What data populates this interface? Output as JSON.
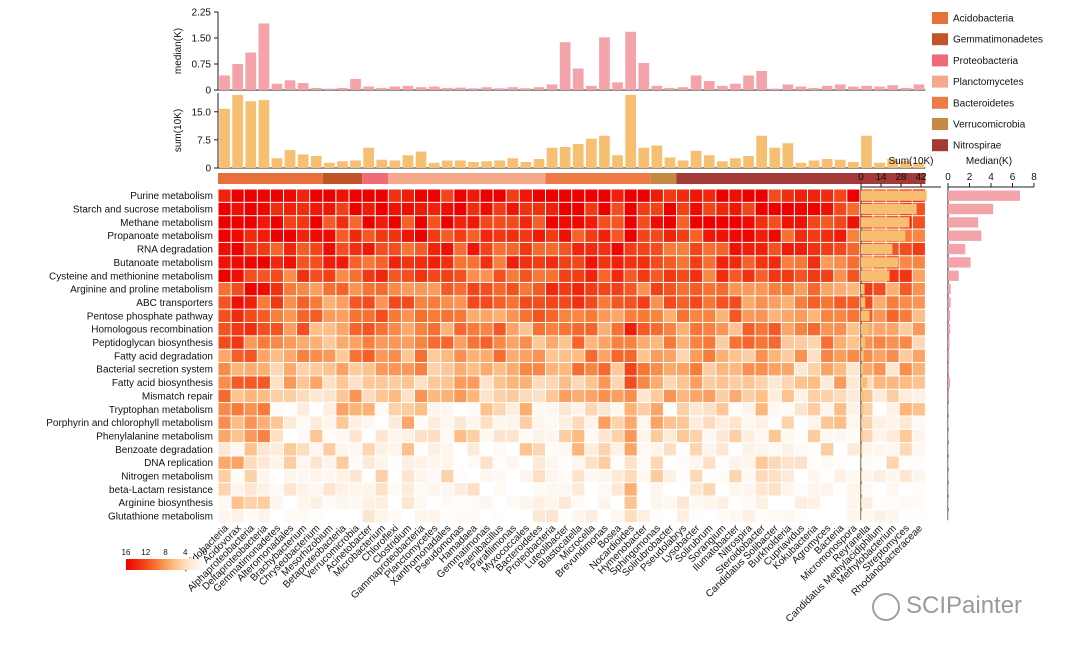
{
  "chart_data": {
    "type": "heatmap",
    "rows": [
      "Purine metabolism",
      "Starch and sucrose metabolism",
      "Methane metabolism",
      "Propanoate metabolism",
      "RNA degradation",
      "Butanoate metabolism",
      "Cysteine and methionine metabolism",
      "Arginine and proline metabolism",
      "ABC transporters",
      "Pentose phosphate pathway",
      "Homologous recombination",
      "Peptidoglycan biosynthesis",
      "Fatty acid degradation",
      "Bacterial secretion system",
      "Fatty acid biosynthesis",
      "Mismatch repair",
      "Tryptophan metabolism",
      "Porphyrin and chlorophyll metabolism",
      "Phenylalanine metabolism",
      "Benzoate degradation",
      "DNA replication",
      "Nitrogen metabolism",
      "beta-Lactam resistance",
      "Arginine biosynthesis",
      "Glutathione metabolism"
    ],
    "columns": [
      "Acidobacteria",
      "Acidovorax",
      "Alphaproteobacteria",
      "Deltaproteobacteria",
      "Gemmatimonadetes",
      "Alteromonadales",
      "Brachybacterium",
      "Chryseobacterium",
      "Mesorhizobium",
      "Betaproteobacteria",
      "Verrucomicrobia",
      "Acinetobacter",
      "Microbacterium",
      "Chloroflexi",
      "Clostridium",
      "Gammaproteobacteria",
      "Planctomycetes",
      "Xanthomonadales",
      "Pseudomonas",
      "Hamadaea",
      "Gemmatimonas",
      "Paenibacillus",
      "Parafilimonas",
      "Myxococcales",
      "Bacteroidetes",
      "Proteobacteria",
      "Luteolibacter",
      "Blastocatella",
      "Microcella",
      "Brevundimonas",
      "Bosea",
      "Nocardioides",
      "Hymenobacter",
      "Sphingomonas",
      "Solirubrobacter",
      "Pseudolabrys",
      "Lysobacter",
      "Solirubrum",
      "Sorangium",
      "Ilumatobacter",
      "Nitrospira",
      "Steroidobacter",
      "Candidatus Solibacter",
      "Burkholderia",
      "Cupriavidus",
      "Kokubacteria",
      "Agromyces",
      "Bacteria",
      "Micromonospora",
      "Reyranella",
      "Candidatus Methylacidiphilum",
      "Methylobacterium",
      "Streptomyces",
      "Rhodanobacteraceae"
    ],
    "column_groups": [
      {
        "name": "Acidobacteria",
        "color": "#E8703A",
        "start": 0,
        "end": 7
      },
      {
        "name": "Gemmatimonadetes",
        "color": "#C0552A",
        "start": 8,
        "end": 10
      },
      {
        "name": "Proteobacteria",
        "color": "#F06B78",
        "start": 11,
        "end": 12
      },
      {
        "name": "Planctomycetes",
        "color": "#F5A98A",
        "start": 13,
        "end": 24
      },
      {
        "name": "Bacteroidetes",
        "color": "#EE7A45",
        "start": 25,
        "end": 32
      },
      {
        "name": "Verrucomicrobia",
        "color": "#C48A45",
        "start": 33,
        "end": 34
      },
      {
        "name": "Nitrospirae",
        "color": "#A33A38",
        "start": 35,
        "end": 53
      }
    ],
    "legend": {
      "title": "",
      "placement": "top-right",
      "entries": [
        "Acidobacteria",
        "Gemmatimonadetes",
        "Proteobacteria",
        "Planctomycetes",
        "Bacteroidetes",
        "Verrucomicrobia",
        "Nitrospirae"
      ]
    },
    "color_scale": {
      "ticks": [
        16,
        12,
        8,
        4,
        0
      ],
      "min": 0,
      "max": 16,
      "colors": [
        "#FFFFFF",
        "#FDE6D0",
        "#FDBB80",
        "#F87B38",
        "#F23A14",
        "#EE0000"
      ]
    },
    "top_bars": {
      "median": {
        "ylabel": "median(K)",
        "ylim": [
          0,
          2.25
        ],
        "ticks": [
          "0",
          "0.75",
          "1.50",
          "2.25"
        ],
        "color": "#F4A3AB",
        "values": [
          0.42,
          0.75,
          1.08,
          1.92,
          0.18,
          0.28,
          0.2,
          0.06,
          0.04,
          0.06,
          0.32,
          0.1,
          0.06,
          0.1,
          0.12,
          0.08,
          0.1,
          0.06,
          0.07,
          0.05,
          0.08,
          0.05,
          0.08,
          0.05,
          0.08,
          0.16,
          1.38,
          0.62,
          0.12,
          1.52,
          0.22,
          1.68,
          0.78,
          0.12,
          0.06,
          0.08,
          0.42,
          0.26,
          0.12,
          0.18,
          0.42,
          0.55,
          0.04,
          0.16,
          0.1,
          0.06,
          0.12,
          0.16,
          0.1,
          0.12,
          0.1,
          0.14,
          0.06,
          0.16
        ]
      },
      "sum": {
        "ylabel": "sum(10K)",
        "ylim": [
          0,
          20
        ],
        "ticks": [
          "0",
          "7.5",
          "15.0"
        ],
        "color": "#F6BF72",
        "values": [
          15.8,
          19.5,
          17.8,
          18.1,
          2.6,
          4.8,
          3.6,
          3.2,
          1.4,
          1.8,
          2.0,
          5.4,
          2.2,
          2.0,
          3.4,
          4.4,
          1.4,
          2.0,
          2.0,
          1.6,
          1.8,
          2.0,
          2.6,
          1.6,
          2.4,
          5.4,
          5.6,
          6.4,
          7.8,
          8.6,
          3.4,
          19.5,
          5.4,
          6.0,
          2.8,
          2.0,
          4.6,
          3.4,
          1.8,
          2.6,
          3.2,
          8.6,
          5.4,
          6.6,
          1.4,
          2.0,
          2.4,
          2.2,
          1.6,
          8.6,
          1.4,
          2.4,
          1.8,
          1.4
        ]
      }
    },
    "side_bars": {
      "sum": {
        "title": "Sum(10K)",
        "xlim": [
          0,
          56
        ],
        "ticks": [
          "0",
          "14",
          "28",
          "42"
        ],
        "color": "#F6BF72",
        "values": [
          46,
          39,
          34,
          31,
          22,
          26,
          20,
          2.5,
          3,
          6,
          5.3,
          3,
          2,
          1.8,
          4.3,
          2,
          1.5,
          0.8,
          1,
          0.8,
          0.5,
          0.5,
          0.3,
          0.4,
          0.3
        ]
      },
      "median": {
        "title": "Median(K)",
        "xlim": [
          0,
          8
        ],
        "ticks": [
          "0",
          "2",
          "4",
          "6",
          "8"
        ],
        "color": "#F4A3AB",
        "values": [
          6.7,
          4.2,
          2.8,
          3.1,
          1.6,
          2.1,
          1.0,
          0.25,
          0.25,
          0.2,
          0.2,
          0.15,
          0.12,
          0.1,
          0.2,
          0.1,
          0.06,
          0.05,
          0.05,
          0.04,
          0.03,
          0.03,
          0.02,
          0.02,
          0.02
        ]
      }
    }
  },
  "watermark": "SCIPainter"
}
